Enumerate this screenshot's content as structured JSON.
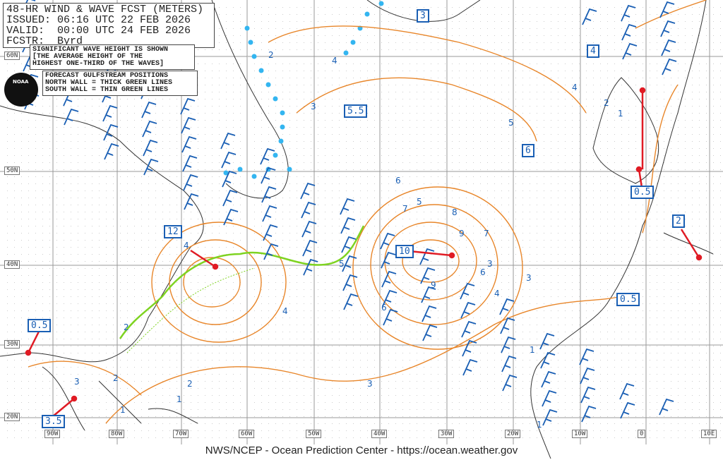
{
  "header": {
    "title": "48-HR WIND & WAVE FCST (METERS)",
    "issued": "ISSUED: 06:16 UTC 22 FEB 2026",
    "valid": "VALID:  00:00 UTC 24 FEB 2026",
    "forecaster": "FCSTR:  Byrd"
  },
  "notes": {
    "wave_height": [
      "SIGNIFICANT WAVE HEIGHT IS SHOWN",
      "[THE AVERAGE HEIGHT OF THE",
      "HIGHEST ONE-THIRD OF THE WAVES]"
    ],
    "gulfstream": [
      "FORECAST GULFSTREAM POSITIONS",
      "NORTH WALL = THICK GREEN LINES",
      "SOUTH WALL = THIN GREEN LINES"
    ]
  },
  "logo": {
    "text": "NOAA"
  },
  "latitude_labels": [
    "60N",
    "50N",
    "40N",
    "30N",
    "20N"
  ],
  "longitude_labels": [
    "90W",
    "80W",
    "70W",
    "60W",
    "50W",
    "40W",
    "30W",
    "20W",
    "10W",
    "0",
    "10E"
  ],
  "boxed_wave_heights": [
    "3",
    "4",
    "5.5",
    "6",
    "12",
    "10",
    "0.5",
    "2",
    "0.5",
    "0.5",
    "3.5"
  ],
  "contour_labels": [
    "2",
    "4",
    "3",
    "5",
    "4",
    "3",
    "2",
    "1",
    "5",
    "4",
    "3",
    "6",
    "7",
    "8",
    "9",
    "9",
    "7",
    "6",
    "6",
    "5",
    "4",
    "3",
    "2",
    "1",
    "4",
    "3",
    "2",
    "2",
    "1",
    "1",
    "1"
  ],
  "colors": {
    "wave_contours": "#e8862a",
    "wind_barbs": "#1a5fb4",
    "arrows": "#e01b24",
    "gulfstream": "#7ed321",
    "ice_edge": "#33b5f0",
    "coast": "#333333"
  },
  "credit": "NWS/NCEP - Ocean Prediction Center - https://ocean.weather.gov"
}
